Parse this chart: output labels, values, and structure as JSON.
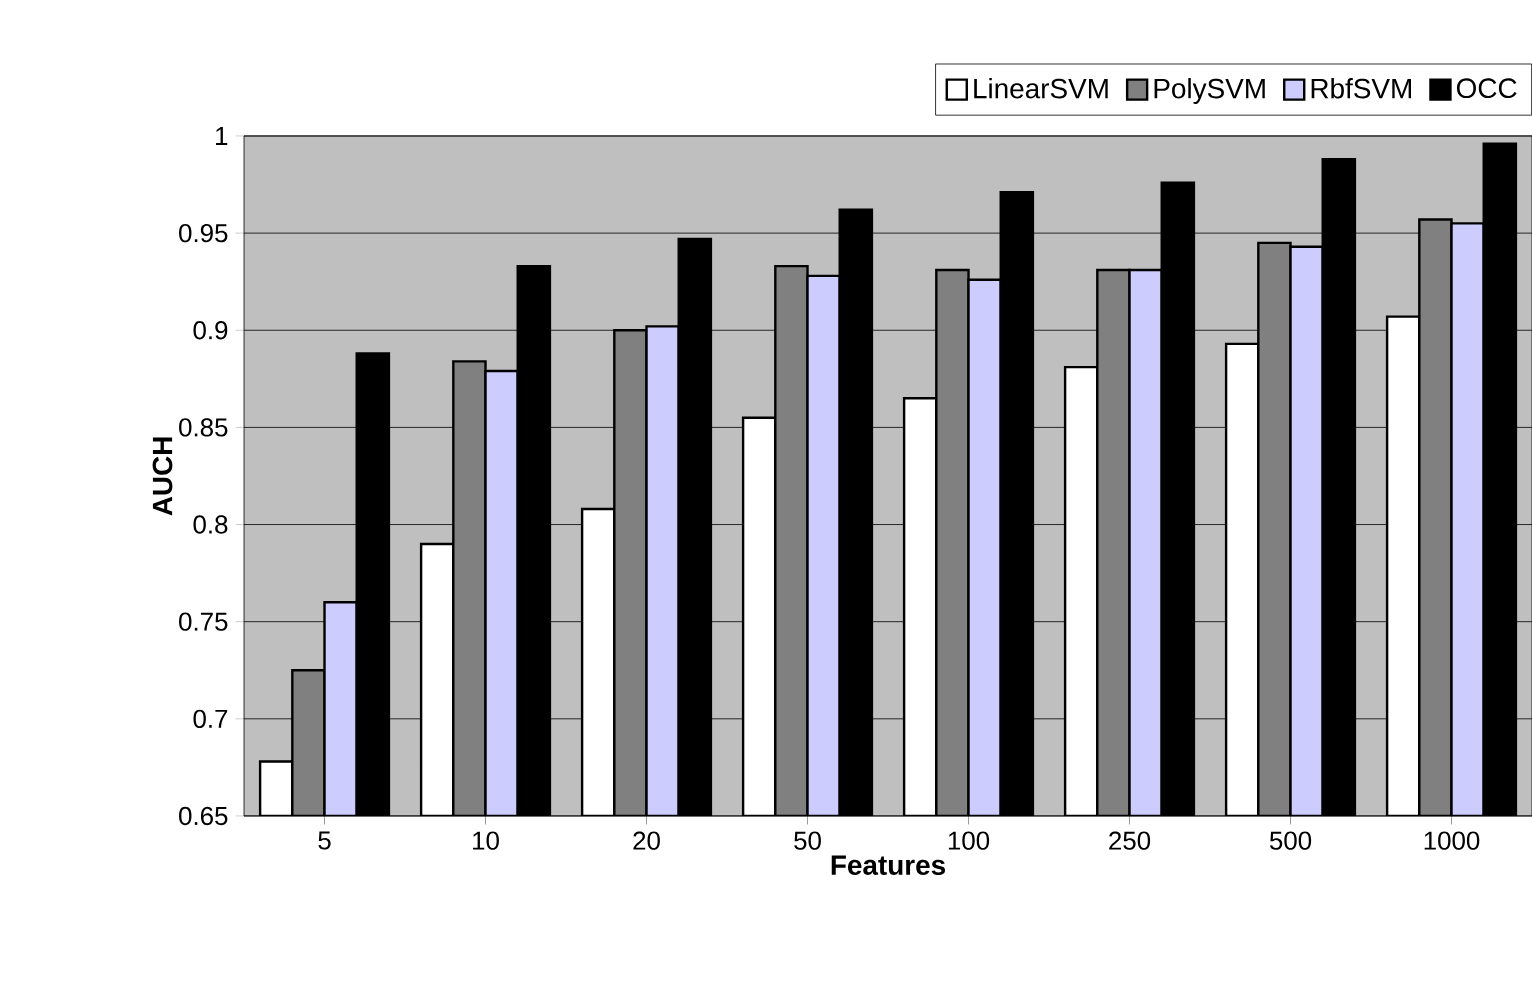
{
  "chart_data": {
    "type": "bar",
    "xlabel": "Features",
    "ylabel": "AUCH",
    "categories": [
      "5",
      "10",
      "20",
      "50",
      "100",
      "250",
      "500",
      "1000"
    ],
    "series": [
      {
        "name": "LinearSVM",
        "color": "#ffffff",
        "values": [
          0.678,
          0.79,
          0.808,
          0.855,
          0.865,
          0.881,
          0.893,
          0.907
        ]
      },
      {
        "name": "PolySVM",
        "color": "#808080",
        "values": [
          0.725,
          0.884,
          0.9,
          0.933,
          0.931,
          0.931,
          0.945,
          0.957
        ]
      },
      {
        "name": "RbfSVM",
        "color": "#ccccff",
        "values": [
          0.76,
          0.879,
          0.902,
          0.928,
          0.926,
          0.931,
          0.943,
          0.955
        ]
      },
      {
        "name": "OCC",
        "color": "#000000",
        "values": [
          0.888,
          0.933,
          0.947,
          0.962,
          0.971,
          0.976,
          0.988,
          0.996
        ]
      }
    ],
    "ylim": [
      0.65,
      1
    ],
    "yticks": [
      0.65,
      0.7,
      0.75,
      0.8,
      0.85,
      0.9,
      0.95,
      1
    ],
    "grid": "y",
    "legend": "top"
  }
}
